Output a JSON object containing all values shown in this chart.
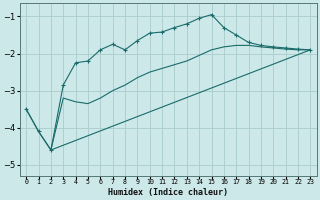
{
  "xlabel": "Humidex (Indice chaleur)",
  "ylabel": "",
  "bg_color": "#cce8e8",
  "line_color": "#1a6b6b",
  "grid_color": "#aacccc",
  "xlim": [
    -0.5,
    23.5
  ],
  "ylim": [
    -5.3,
    -0.65
  ],
  "yticks": [
    -5,
    -4,
    -3,
    -2,
    -1
  ],
  "xticks": [
    0,
    1,
    2,
    3,
    4,
    5,
    6,
    7,
    8,
    9,
    10,
    11,
    12,
    13,
    14,
    15,
    16,
    17,
    18,
    19,
    20,
    21,
    22,
    23
  ],
  "line1_x": [
    0,
    1,
    2,
    3,
    4,
    5,
    6,
    7,
    8,
    9,
    10,
    11,
    12,
    13,
    14,
    15,
    16,
    17,
    18,
    19,
    20,
    21,
    22,
    23
  ],
  "line1_y": [
    -3.5,
    -4.1,
    -4.6,
    -2.85,
    -2.25,
    -2.2,
    -1.9,
    -1.75,
    -1.9,
    -1.65,
    -1.45,
    -1.42,
    -1.3,
    -1.2,
    -1.05,
    -0.95,
    -1.3,
    -1.5,
    -1.7,
    -1.78,
    -1.82,
    -1.85,
    -1.88,
    -1.9
  ],
  "line2_x": [
    0,
    1,
    2,
    3,
    4,
    5,
    6,
    7,
    8,
    9,
    10,
    11,
    12,
    13,
    14,
    15,
    16,
    17,
    18,
    19,
    20,
    21,
    22,
    23
  ],
  "line2_y": [
    -3.5,
    -4.1,
    -4.6,
    -3.2,
    -3.3,
    -3.35,
    -3.2,
    -3.0,
    -2.85,
    -2.65,
    -2.5,
    -2.4,
    -2.3,
    -2.2,
    -2.05,
    -1.9,
    -1.82,
    -1.78,
    -1.78,
    -1.82,
    -1.85,
    -1.88,
    -1.9,
    -1.9
  ],
  "line3_x": [
    2,
    23
  ],
  "line3_y": [
    -4.6,
    -1.9
  ]
}
